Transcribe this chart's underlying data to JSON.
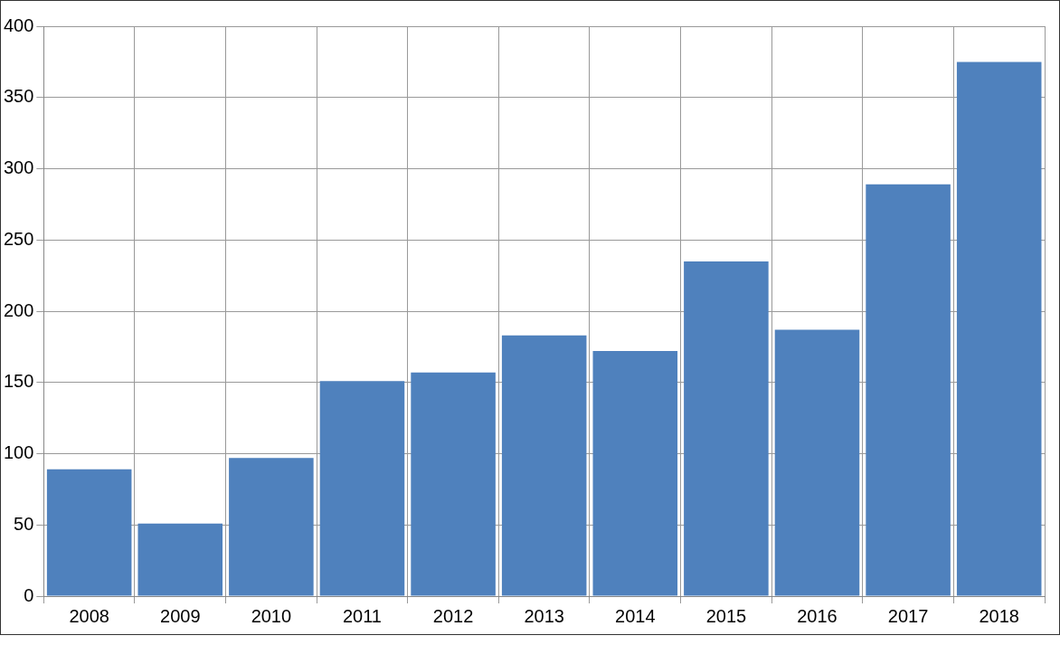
{
  "chart_data": {
    "type": "bar",
    "categories": [
      "2008",
      "2009",
      "2010",
      "2011",
      "2012",
      "2013",
      "2014",
      "2015",
      "2016",
      "2017",
      "2018"
    ],
    "values": [
      89,
      51,
      97,
      151,
      157,
      183,
      172,
      235,
      187,
      289,
      375
    ],
    "color": "#4f81bd",
    "ylim": [
      0,
      400
    ],
    "yticks": [
      0,
      50,
      100,
      150,
      200,
      250,
      300,
      350,
      400
    ],
    "grid": true,
    "legend": false
  }
}
